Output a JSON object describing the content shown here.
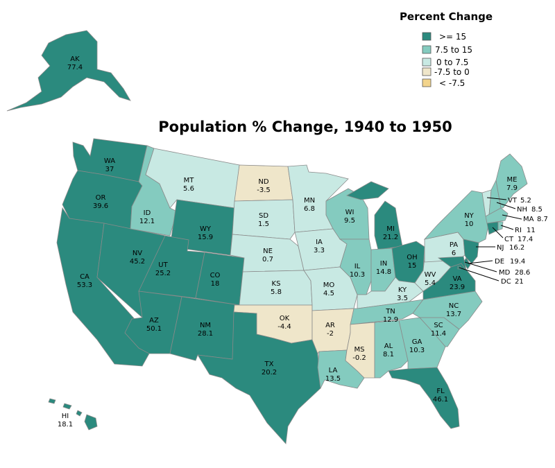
{
  "title": "Population % Change, 1940 to 1950",
  "legend": {
    "title": "Percent Change",
    "items": [
      {
        "label": ">= 15",
        "color": "#2b8a7e"
      },
      {
        "label": "7.5 to 15",
        "color": "#84cbbf"
      },
      {
        "label": "0 to 7.5",
        "color": "#c8e9e3"
      },
      {
        "label": "-7.5 to 0",
        "color": "#efe6ca"
      },
      {
        "label": "< -7.5",
        "color": "#f2d48c"
      }
    ]
  },
  "states": [
    {
      "abbr": "AK",
      "value": "77.4"
    },
    {
      "abbr": "HI",
      "value": "18.1"
    },
    {
      "abbr": "WA",
      "value": "37"
    },
    {
      "abbr": "OR",
      "value": "39.6"
    },
    {
      "abbr": "CA",
      "value": "53.3"
    },
    {
      "abbr": "NV",
      "value": "45.2"
    },
    {
      "abbr": "ID",
      "value": "12.1"
    },
    {
      "abbr": "MT",
      "value": "5.6"
    },
    {
      "abbr": "WY",
      "value": "15.9"
    },
    {
      "abbr": "UT",
      "value": "25.2"
    },
    {
      "abbr": "CO",
      "value": "18"
    },
    {
      "abbr": "AZ",
      "value": "50.1"
    },
    {
      "abbr": "NM",
      "value": "28.1"
    },
    {
      "abbr": "ND",
      "value": "-3.5"
    },
    {
      "abbr": "SD",
      "value": "1.5"
    },
    {
      "abbr": "NE",
      "value": "0.7"
    },
    {
      "abbr": "KS",
      "value": "5.8"
    },
    {
      "abbr": "OK",
      "value": "-4.4"
    },
    {
      "abbr": "TX",
      "value": "20.2"
    },
    {
      "abbr": "MN",
      "value": "6.8"
    },
    {
      "abbr": "IA",
      "value": "3.3"
    },
    {
      "abbr": "MO",
      "value": "4.5"
    },
    {
      "abbr": "AR",
      "value": "-2"
    },
    {
      "abbr": "LA",
      "value": "13.5"
    },
    {
      "abbr": "WI",
      "value": "9.5"
    },
    {
      "abbr": "IL",
      "value": "10.3"
    },
    {
      "abbr": "MI",
      "value": "21.2"
    },
    {
      "abbr": "IN",
      "value": "14.8"
    },
    {
      "abbr": "OH",
      "value": "15"
    },
    {
      "abbr": "KY",
      "value": "3.5"
    },
    {
      "abbr": "TN",
      "value": "12.9"
    },
    {
      "abbr": "MS",
      "value": "-0.2"
    },
    {
      "abbr": "AL",
      "value": "8.1"
    },
    {
      "abbr": "GA",
      "value": "10.3"
    },
    {
      "abbr": "FL",
      "value": "46.1"
    },
    {
      "abbr": "SC",
      "value": "11.4"
    },
    {
      "abbr": "NC",
      "value": "13.7"
    },
    {
      "abbr": "VA",
      "value": "23.9"
    },
    {
      "abbr": "WV",
      "value": "5.4"
    },
    {
      "abbr": "PA",
      "value": "6"
    },
    {
      "abbr": "NY",
      "value": "10"
    },
    {
      "abbr": "ME",
      "value": "7.9"
    },
    {
      "abbr": "VT",
      "value": "5.2"
    },
    {
      "abbr": "NH",
      "value": "8.5"
    },
    {
      "abbr": "MA",
      "value": "8.7"
    },
    {
      "abbr": "RI",
      "value": "11"
    },
    {
      "abbr": "CT",
      "value": "17.4"
    },
    {
      "abbr": "NJ",
      "value": "16.2"
    },
    {
      "abbr": "DE",
      "value": "19.4"
    },
    {
      "abbr": "MD",
      "value": "28.6"
    },
    {
      "abbr": "DC",
      "value": "21"
    }
  ]
}
